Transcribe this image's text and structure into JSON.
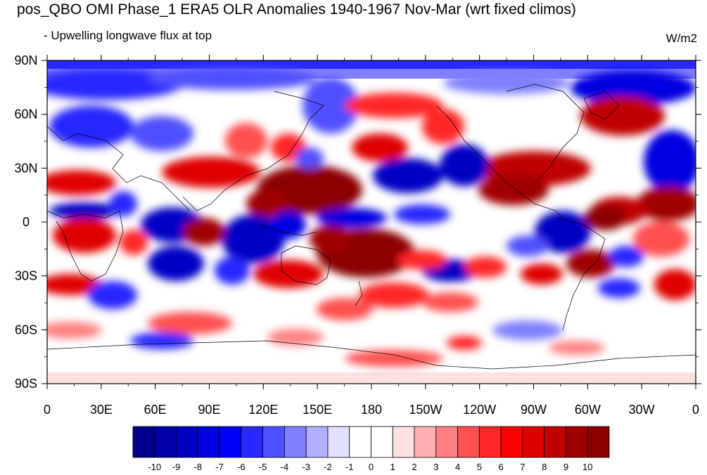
{
  "title": "pos_QBO OMI Phase_1 ERA5 OLR Anomalies 1940-1967 Nov-Mar (wrt fixed climos)",
  "subtitle": "- Upwelling longwave flux at top",
  "units": "W/m2",
  "lat_labels": [
    "90N",
    "60N",
    "30N",
    "0",
    "30S",
    "60S",
    "90S"
  ],
  "lon_labels": [
    "0",
    "30E",
    "60E",
    "90E",
    "120E",
    "150E",
    "180",
    "150W",
    "120W",
    "90W",
    "60W",
    "30W",
    "0"
  ],
  "colorbar": {
    "labels": [
      "-10",
      "-9",
      "-8",
      "-7",
      "-6",
      "-5",
      "-4",
      "-3",
      "-2",
      "-1",
      "0",
      "1",
      "2",
      "3",
      "4",
      "5",
      "6",
      "7",
      "8",
      "9",
      "10"
    ],
    "colors": [
      "#00008c",
      "#0000a8",
      "#0000c4",
      "#0000e0",
      "#0000ff",
      "#2828ff",
      "#5050ff",
      "#8080ff",
      "#b0b0ff",
      "#e0e0ff",
      "#ffffff",
      "#ffffff",
      "#ffe0e0",
      "#ffb0b0",
      "#ff8080",
      "#ff5050",
      "#ff2828",
      "#ff0000",
      "#e00000",
      "#c00000",
      "#a00000",
      "#8c0000"
    ]
  },
  "map": {
    "projection": "cylindrical equidistant",
    "lon_range": [
      0,
      360
    ],
    "lat_range": [
      -90,
      90
    ],
    "features": [
      "coastlines",
      "OLR anomaly shading"
    ]
  }
}
